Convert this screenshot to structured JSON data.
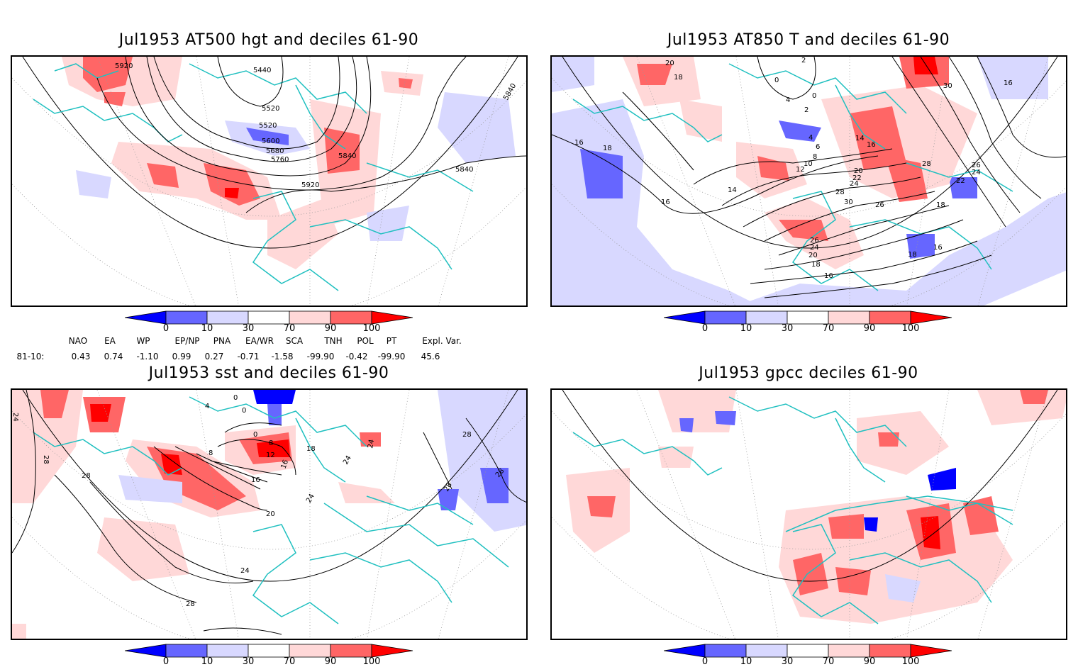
{
  "panels": [
    {
      "title": "Jul1953 AT500 hgt and deciles 61-90",
      "contour_labels": [
        "5920",
        "5440",
        "5520",
        "5520",
        "5600",
        "5680",
        "5760",
        "5840",
        "5840",
        "5840",
        "5920"
      ]
    },
    {
      "title": "Jul1953 AT850 T and deciles 61-90",
      "contour_labels": [
        "20",
        "18",
        "2",
        "0",
        "4",
        "0",
        "2",
        "4",
        "6",
        "8",
        "10",
        "12",
        "14",
        "16",
        "14",
        "16",
        "18",
        "16",
        "20",
        "22",
        "24",
        "28",
        "30",
        "26",
        "26",
        "24",
        "20",
        "18",
        "16",
        "28",
        "26",
        "24",
        "22",
        "18",
        "18",
        "16",
        "30",
        "16"
      ]
    },
    {
      "title": "Jul1953 sst and deciles 61-90",
      "contour_labels": [
        "24",
        "28",
        "28",
        "0",
        "4",
        "0",
        "0",
        "8",
        "8",
        "12",
        "16",
        "16",
        "18",
        "20",
        "24",
        "24",
        "24",
        "28",
        "28",
        "28",
        "28",
        "24"
      ]
    },
    {
      "title": "Jul1953 gpcc deciles 61-90",
      "contour_labels": []
    }
  ],
  "colorbar": {
    "labels": [
      "0",
      "10",
      "30",
      "70",
      "90",
      "100"
    ],
    "colors": [
      "#0000ff",
      "#6666ff",
      "#d8d8ff",
      "#ffffff",
      "#ffd8d8",
      "#ff6666",
      "#ff0000"
    ]
  },
  "indices": {
    "headers": [
      "NAO",
      "EA",
      "WP",
      "EP/NP",
      "PNA",
      "EA/WR",
      "SCA",
      "TNH",
      "POL",
      "PT",
      "Expl. Var."
    ],
    "row_label": "81-10:",
    "values": [
      "0.43",
      "0.74",
      "-1.10",
      "0.99",
      "0.27",
      "-0.71",
      "-1.58",
      "-99.90",
      "-0.42",
      "-99.90",
      "45.6"
    ]
  },
  "colors": {
    "coast": "#20c0c0",
    "grid": "#999999",
    "contour": "#000000"
  }
}
